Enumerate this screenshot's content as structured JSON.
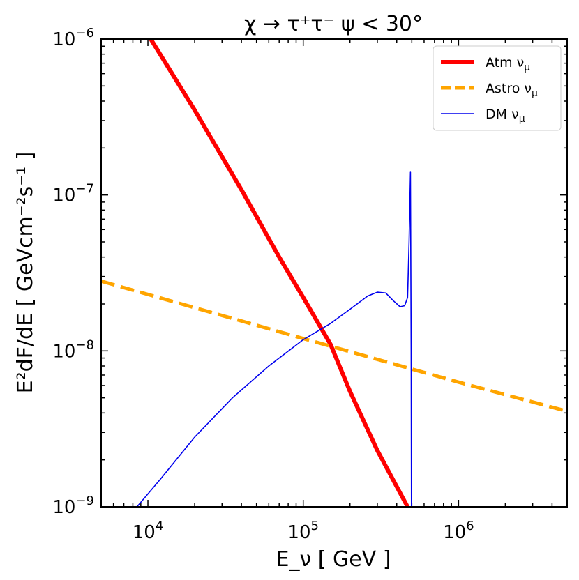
{
  "chart_data": {
    "type": "line",
    "title": "χ → τ⁺τ⁻   ψ < 30°",
    "xlabel": "E_ν [ GeV ]",
    "ylabel": "E²dF/dE [ GeVcm⁻²s⁻¹ ]",
    "xscale": "log",
    "yscale": "log",
    "xlim": [
      5000,
      5000000
    ],
    "ylim": [
      1e-09,
      1e-06
    ],
    "x_ticks": [
      {
        "value": 10000,
        "label": "10^4"
      },
      {
        "value": 100000,
        "label": "10^5"
      },
      {
        "value": 1000000,
        "label": "10^6"
      }
    ],
    "y_ticks": [
      {
        "value": 1e-09,
        "label": "10^-9"
      },
      {
        "value": 1e-08,
        "label": "10^-8"
      },
      {
        "value": 1e-07,
        "label": "10^-7"
      },
      {
        "value": 1e-06,
        "label": "10^-6"
      }
    ],
    "legend_position": "top-right",
    "grid": false,
    "series": [
      {
        "name": "Atm ν_μ",
        "color": "#ff0000",
        "style": "solid-thick",
        "x": [
          10000,
          20000,
          40000,
          70000,
          100000,
          150000,
          200000,
          300000,
          470000
        ],
        "y": [
          1.07e-06,
          3.5e-07,
          1.08e-07,
          4e-08,
          2.2e-08,
          1.1e-08,
          5.5e-09,
          2.3e-09,
          1e-09
        ]
      },
      {
        "name": "Astro ν_μ",
        "color": "#ffa500",
        "style": "dashed",
        "x": [
          5000,
          100000,
          1000000,
          5000000
        ],
        "y": [
          2.8e-08,
          1.2e-08,
          6.3e-09,
          4.1e-09
        ]
      },
      {
        "name": "DM ν_μ",
        "color": "#0000ee",
        "style": "solid-thin",
        "x": [
          8500,
          12000,
          20000,
          35000,
          60000,
          100000,
          150000,
          200000,
          260000,
          300000,
          340000,
          380000,
          420000,
          450000,
          470000,
          480000,
          490000,
          495000,
          497000
        ],
        "y": [
          1e-09,
          1.5e-09,
          2.8e-09,
          5e-09,
          8e-09,
          1.18e-08,
          1.5e-08,
          1.85e-08,
          2.25e-08,
          2.38e-08,
          2.35e-08,
          2.1e-08,
          1.92e-08,
          1.95e-08,
          2.2e-08,
          5e-08,
          1.4e-07,
          1e-08,
          1e-09
        ]
      }
    ]
  }
}
